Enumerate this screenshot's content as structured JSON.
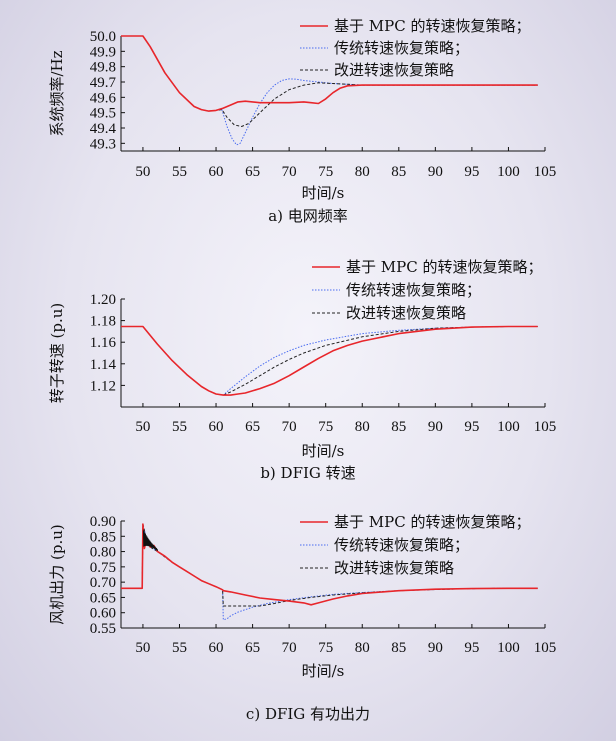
{
  "colors": {
    "mpc": "#e8262b",
    "traditional": "#4a6cf0",
    "improved": "#222222",
    "axis": "#111111"
  },
  "chart_data": [
    {
      "type": "line",
      "caption": "a) 电网频率",
      "xlabel": "时间/s",
      "ylabel": "系统频率/Hz",
      "xlim": [
        47,
        105
      ],
      "ylim": [
        49.25,
        50.0
      ],
      "xticks": [
        50,
        55,
        60,
        65,
        70,
        75,
        80,
        85,
        90,
        95,
        100,
        105
      ],
      "yticks": [
        "50.0",
        "49.9",
        "49.8",
        "49.7",
        "49.6",
        "49.5",
        "49.4",
        "49.3"
      ],
      "ytick_values": [
        50.0,
        49.9,
        49.8,
        49.7,
        49.6,
        49.5,
        49.4,
        49.3
      ],
      "legend_position": "top-right",
      "series": [
        {
          "name": "基于 MPC 的转速恢复策略；",
          "style": "solid",
          "x": [
            47,
            50,
            51,
            53,
            55,
            57,
            58,
            59,
            60,
            61,
            62,
            63,
            64,
            66,
            68,
            70,
            72,
            73,
            74,
            75,
            76,
            77,
            78,
            80,
            85,
            90,
            95,
            100,
            104
          ],
          "y": [
            50.0,
            50.0,
            49.93,
            49.76,
            49.63,
            49.54,
            49.52,
            49.51,
            49.515,
            49.53,
            49.55,
            49.57,
            49.575,
            49.565,
            49.565,
            49.565,
            49.57,
            49.565,
            49.56,
            49.59,
            49.63,
            49.66,
            49.675,
            49.68,
            49.68,
            49.68,
            49.68,
            49.68,
            49.68
          ]
        },
        {
          "name": "传统转速恢复策略；",
          "style": "dotted",
          "x": [
            47,
            50,
            51,
            53,
            55,
            57,
            58,
            59,
            60,
            60.8,
            61.5,
            62.2,
            62.8,
            63.3,
            64,
            65,
            66,
            67,
            68,
            69,
            70,
            71,
            72,
            74,
            76,
            78,
            80,
            85,
            90,
            95,
            100,
            104
          ],
          "y": [
            50.0,
            50.0,
            49.93,
            49.76,
            49.63,
            49.54,
            49.52,
            49.51,
            49.515,
            49.52,
            49.41,
            49.33,
            49.29,
            49.3,
            49.37,
            49.47,
            49.56,
            49.63,
            49.68,
            49.71,
            49.72,
            49.718,
            49.71,
            49.7,
            49.69,
            49.685,
            49.68,
            49.68,
            49.68,
            49.68,
            49.68,
            49.68
          ]
        },
        {
          "name": "改进转速恢复策略",
          "style": "dashed",
          "x": [
            47,
            50,
            51,
            53,
            55,
            57,
            58,
            59,
            60,
            60.8,
            61.5,
            62.5,
            63.5,
            64.5,
            66,
            68,
            70,
            72,
            74,
            76,
            78,
            80,
            85,
            90,
            95,
            100,
            104
          ],
          "y": [
            50.0,
            50.0,
            49.93,
            49.76,
            49.63,
            49.54,
            49.52,
            49.51,
            49.515,
            49.52,
            49.47,
            49.42,
            49.41,
            49.43,
            49.5,
            49.59,
            49.65,
            49.68,
            49.695,
            49.69,
            49.685,
            49.68,
            49.68,
            49.68,
            49.68,
            49.68,
            49.68
          ]
        }
      ]
    },
    {
      "type": "line",
      "caption": "b) DFIG 转速",
      "xlabel": "时间/s",
      "ylabel": "转子转速 (p.u)",
      "xlim": [
        47,
        105
      ],
      "ylim": [
        1.1,
        1.2
      ],
      "xticks": [
        50,
        55,
        60,
        65,
        70,
        75,
        80,
        85,
        90,
        95,
        100,
        105
      ],
      "yticks": [
        "1.20",
        "1.18",
        "1.16",
        "1.14",
        "1.12"
      ],
      "ytick_values": [
        1.2,
        1.18,
        1.16,
        1.14,
        1.12
      ],
      "legend_position": "top-right",
      "series": [
        {
          "name": "基于 MPC 的转速恢复策略；",
          "style": "solid",
          "x": [
            47,
            50,
            52,
            54,
            56,
            58,
            59,
            60,
            61,
            62,
            63,
            64,
            66,
            68,
            70,
            72,
            74,
            76,
            78,
            80,
            85,
            90,
            95,
            100,
            104
          ],
          "y": [
            1.1745,
            1.1745,
            1.158,
            1.143,
            1.13,
            1.119,
            1.115,
            1.112,
            1.111,
            1.111,
            1.112,
            1.113,
            1.117,
            1.122,
            1.129,
            1.137,
            1.145,
            1.152,
            1.157,
            1.161,
            1.168,
            1.172,
            1.174,
            1.1745,
            1.1745
          ]
        },
        {
          "name": "传统转速恢复策略；",
          "style": "dotted",
          "x": [
            47,
            50,
            52,
            54,
            56,
            58,
            59,
            60,
            61,
            62,
            64,
            66,
            68,
            70,
            72,
            75,
            80,
            85,
            90,
            95,
            100,
            104
          ],
          "y": [
            1.1745,
            1.1745,
            1.158,
            1.143,
            1.13,
            1.119,
            1.115,
            1.112,
            1.111,
            1.117,
            1.128,
            1.138,
            1.146,
            1.152,
            1.157,
            1.162,
            1.168,
            1.171,
            1.173,
            1.174,
            1.1745,
            1.1745
          ]
        },
        {
          "name": "改进转速恢复策略",
          "style": "dashed",
          "x": [
            47,
            50,
            52,
            54,
            56,
            58,
            59,
            60,
            61,
            62,
            64,
            66,
            68,
            70,
            72,
            75,
            80,
            85,
            90,
            95,
            100,
            104
          ],
          "y": [
            1.1745,
            1.1745,
            1.158,
            1.143,
            1.13,
            1.119,
            1.115,
            1.112,
            1.111,
            1.114,
            1.121,
            1.129,
            1.137,
            1.144,
            1.15,
            1.157,
            1.165,
            1.17,
            1.173,
            1.174,
            1.1745,
            1.1745
          ]
        }
      ]
    },
    {
      "type": "line",
      "caption": "c) DFIG 有功出力",
      "xlabel": "时间/s",
      "ylabel": "风机出力 (p.u)",
      "xlim": [
        47,
        105
      ],
      "ylim": [
        0.55,
        0.9
      ],
      "xticks": [
        50,
        55,
        60,
        65,
        70,
        75,
        80,
        85,
        90,
        95,
        100,
        105
      ],
      "yticks": [
        "0.90",
        "0.85",
        "0.80",
        "0.75",
        "0.70",
        "0.65",
        "0.60",
        "0.55"
      ],
      "ytick_values": [
        0.9,
        0.85,
        0.8,
        0.75,
        0.7,
        0.65,
        0.6,
        0.55
      ],
      "legend_position": "top-right",
      "series": [
        {
          "name": "基于 MPC 的转速恢复策略；",
          "style": "solid",
          "x": [
            47,
            49.9,
            50,
            50.2,
            50.5,
            51,
            51.5,
            52,
            53,
            54,
            55,
            56,
            57,
            58,
            59,
            60,
            60.9,
            61,
            62,
            64,
            66,
            68,
            70,
            72,
            73,
            74,
            76,
            78,
            80,
            85,
            90,
            95,
            100,
            104
          ],
          "y": [
            0.68,
            0.68,
            0.89,
            0.81,
            0.84,
            0.815,
            0.82,
            0.8,
            0.785,
            0.765,
            0.75,
            0.735,
            0.72,
            0.705,
            0.695,
            0.685,
            0.675,
            0.672,
            0.668,
            0.658,
            0.648,
            0.643,
            0.638,
            0.632,
            0.626,
            0.632,
            0.645,
            0.655,
            0.663,
            0.672,
            0.677,
            0.679,
            0.68,
            0.68
          ]
        },
        {
          "name": "传统转速恢复策略；",
          "style": "dotted",
          "x": [
            47,
            49.9,
            50,
            50.5,
            51,
            52,
            54,
            56,
            58,
            60,
            60.9,
            61,
            61.5,
            62,
            63,
            65,
            67,
            70,
            73,
            76,
            80,
            85,
            90,
            95,
            100,
            104
          ],
          "y": [
            0.68,
            0.68,
            0.89,
            0.84,
            0.815,
            0.8,
            0.765,
            0.735,
            0.705,
            0.685,
            0.675,
            0.577,
            0.58,
            0.59,
            0.602,
            0.618,
            0.63,
            0.643,
            0.652,
            0.66,
            0.666,
            0.672,
            0.676,
            0.679,
            0.68,
            0.68
          ]
        },
        {
          "name": "改进转速恢复策略",
          "style": "dashed",
          "x": [
            47,
            49.9,
            50,
            50.5,
            51,
            52,
            54,
            56,
            58,
            60,
            60.9,
            61,
            63,
            66,
            68,
            70,
            73,
            76,
            80,
            85,
            90,
            95,
            100,
            104
          ],
          "y": [
            0.68,
            0.68,
            0.89,
            0.84,
            0.815,
            0.8,
            0.765,
            0.735,
            0.705,
            0.685,
            0.675,
            0.622,
            0.622,
            0.622,
            0.63,
            0.64,
            0.65,
            0.658,
            0.665,
            0.672,
            0.676,
            0.679,
            0.68,
            0.68
          ]
        }
      ]
    }
  ]
}
